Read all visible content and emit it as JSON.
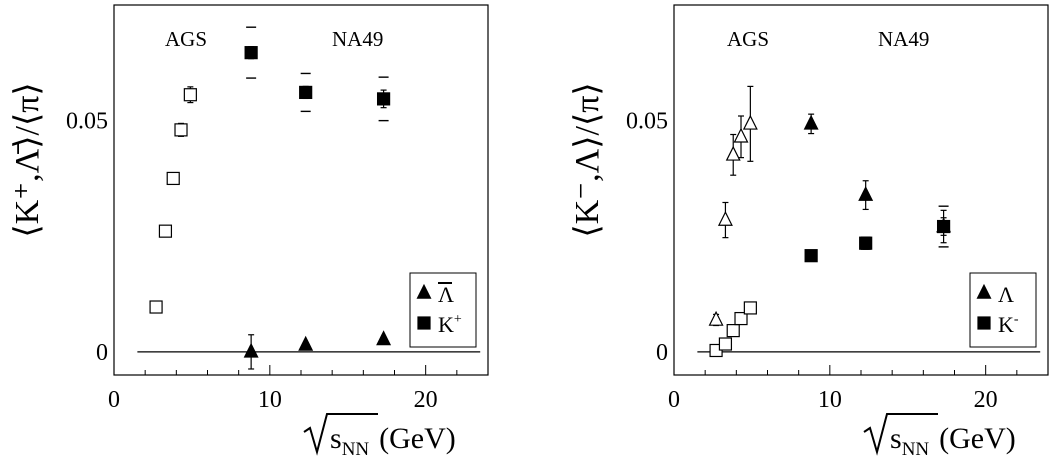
{
  "chart_data": [
    {
      "type": "scatter",
      "panel_label": "left",
      "ylabel": "⟨K⁺,Λ̄⟩/⟨π⟩",
      "xlabel": "√s_NN (GeV)",
      "xlabel_parts": {
        "var": "s",
        "sub": "NN",
        "unit": "(GeV)"
      },
      "xlim": [
        0,
        24
      ],
      "ylim": [
        -0.005,
        0.075
      ],
      "x_ticks": [
        "0",
        "10",
        "20"
      ],
      "x_tick_values": [
        0,
        10,
        20
      ],
      "y_ticks": [
        "0",
        "0.05"
      ],
      "y_tick_values": [
        0,
        0.05
      ],
      "annotations": [
        "AGS",
        "NA49"
      ],
      "reference_line": {
        "y": 0,
        "x": [
          1.5,
          23.5
        ]
      },
      "legend": {
        "placement": "bottom-right",
        "entries": [
          {
            "marker": "filled-triangle",
            "label": "Λ",
            "overline": true
          },
          {
            "marker": "filled-square",
            "label": "K",
            "sup": "+"
          }
        ]
      },
      "series": [
        {
          "name": "K+",
          "experiment": "AGS",
          "marker": "open-square",
          "x": [
            2.7,
            3.3,
            3.8,
            4.3,
            4.9
          ],
          "y": [
            0.0097,
            0.0261,
            0.0375,
            0.048,
            0.0556
          ],
          "err": [
            0,
            0,
            0,
            0.0014,
            0.0017
          ]
        },
        {
          "name": "K+",
          "experiment": "NA49",
          "marker": "filled-square",
          "x": [
            8.8,
            12.3,
            17.3
          ],
          "y": [
            0.0647,
            0.0561,
            0.0547
          ],
          "err": [
            0.0013,
            0.0013,
            0.0019
          ],
          "sys": [
            0.0055,
            0.0041,
            0.0047
          ]
        },
        {
          "name": "Λ̄",
          "experiment": "NA49",
          "marker": "filled-triangle",
          "x": [
            8.8,
            12.3,
            17.3
          ],
          "y": [
            0.0,
            0.0015,
            0.0027
          ],
          "err": [
            0.0037,
            0.0003,
            0.0003
          ]
        }
      ]
    },
    {
      "type": "scatter",
      "panel_label": "right",
      "ylabel": "⟨K⁻,Λ⟩/⟨π⟩",
      "xlabel": "√s_NN (GeV)",
      "xlabel_parts": {
        "var": "s",
        "sub": "NN",
        "unit": "(GeV)"
      },
      "xlim": [
        0,
        24
      ],
      "ylim": [
        -0.005,
        0.075
      ],
      "x_ticks": [
        "0",
        "10",
        "20"
      ],
      "x_tick_values": [
        0,
        10,
        20
      ],
      "y_ticks": [
        "0",
        "0.05"
      ],
      "y_tick_values": [
        0,
        0.05
      ],
      "annotations": [
        "AGS",
        "NA49"
      ],
      "reference_line": {
        "y": 0,
        "x": [
          1.5,
          23.5
        ]
      },
      "legend": {
        "placement": "bottom-right",
        "entries": [
          {
            "marker": "filled-triangle",
            "label": "Λ"
          },
          {
            "marker": "filled-square",
            "label": "K",
            "sup": "-"
          }
        ]
      },
      "series": [
        {
          "name": "Λ",
          "experiment": "AGS",
          "marker": "open-triangle",
          "x": [
            2.7,
            3.3,
            3.8,
            4.3,
            4.9
          ],
          "y": [
            0.0069,
            0.0285,
            0.0426,
            0.0465,
            0.0493
          ],
          "err": [
            0.0012,
            0.0038,
            0.0044,
            0.0045,
            0.0081
          ]
        },
        {
          "name": "K-",
          "experiment": "AGS",
          "marker": "open-square",
          "x": [
            2.7,
            3.3,
            3.8,
            4.3,
            4.9
          ],
          "y": [
            0.0003,
            0.0017,
            0.0046,
            0.0072,
            0.0095
          ],
          "err": [
            0,
            0,
            0,
            0,
            0
          ]
        },
        {
          "name": "Λ",
          "experiment": "NA49",
          "marker": "filled-triangle",
          "x": [
            8.8,
            12.3,
            17.3
          ],
          "y": [
            0.0493,
            0.0339,
            0.0271
          ],
          "err": [
            0.0021,
            0.0031,
            0.0035
          ]
        },
        {
          "name": "K-",
          "experiment": "NA49",
          "marker": "filled-square",
          "x": [
            8.8,
            12.3,
            17.3
          ],
          "y": [
            0.0208,
            0.0235,
            0.0271
          ],
          "err": [
            0.0011,
            0.0013,
            0.0019
          ],
          "sys": [
            0.0011,
            0.0013,
            0.0044
          ]
        }
      ]
    }
  ]
}
